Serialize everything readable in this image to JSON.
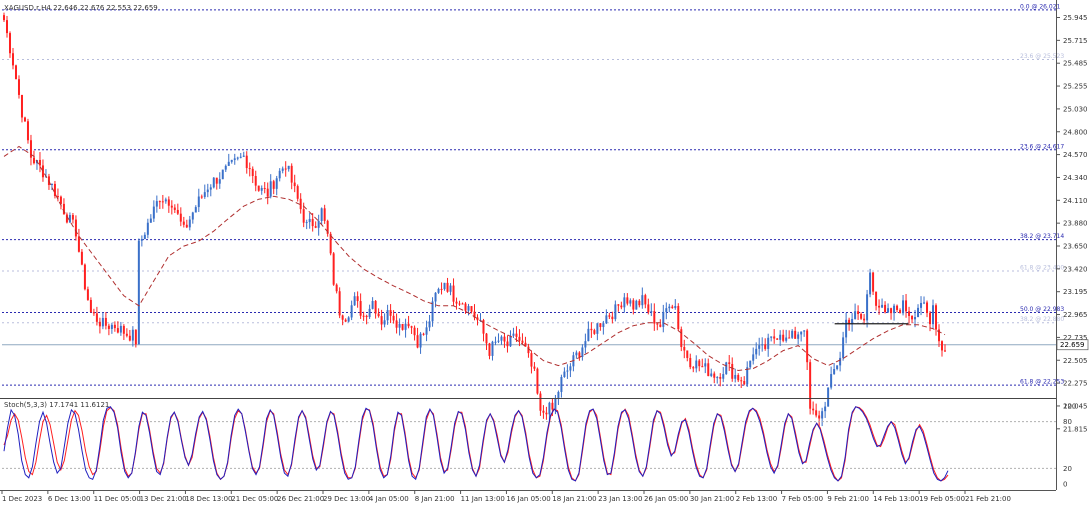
{
  "symbol_info": "XAGUSD.r,H4  22.646 22.676 22.553 22.659",
  "stoch_info": "Stoch(5,3,3) 17.1741 11.6121",
  "current_price": "22.659",
  "colors": {
    "background": "#ffffff",
    "bull": "#3a70c9",
    "bear": "#ff2020",
    "ma": "#b03030",
    "fib": "#2a2ab0",
    "fib_faint": "#b8bedc",
    "stoch_main": "#2020c0",
    "stoch_signal": "#ff2020",
    "level_line": "#222222",
    "price_line": "#8fa8c0",
    "text": "#333333"
  },
  "chart_data": {
    "type": "candlestick",
    "price_axis_labels": [
      "25.945",
      "25.715",
      "25.485",
      "25.255",
      "25.030",
      "24.800",
      "24.570",
      "24.340",
      "24.110",
      "23.880",
      "23.650",
      "23.420",
      "23.195",
      "22.965",
      "22.735",
      "22.505",
      "22.275",
      "22.045",
      "21.815"
    ],
    "time_axis_labels": [
      "1 Dec 2023",
      "6 Dec 13:00",
      "11 Dec 05:00",
      "13 Dec 21:00",
      "18 Dec 13:00",
      "21 Dec 05:00",
      "26 Dec 21:00",
      "29 Dec 13:00",
      "4 Jan 05:00",
      "8 Jan 21:00",
      "11 Jan 13:00",
      "16 Jan 05:00",
      "18 Jan 21:00",
      "23 Jan 13:00",
      "26 Jan 05:00",
      "30 Jan 21:00",
      "2 Feb 13:00",
      "7 Feb 05:00",
      "9 Feb 21:00",
      "14 Feb 13:00",
      "19 Feb 05:00",
      "21 Feb 21:00"
    ],
    "fib_levels": [
      {
        "label": "0.0 @ 26.021",
        "price": 26.021,
        "style": "strong"
      },
      {
        "label": "23.6 @ 25.523",
        "price": 25.523,
        "style": "faint"
      },
      {
        "label": "23.6 @ 24.617",
        "price": 24.617,
        "style": "strong"
      },
      {
        "label": "38.2 @ 23.714",
        "price": 23.714,
        "style": "strong"
      },
      {
        "label": "61.8 @ 23.400",
        "price": 23.4,
        "style": "faint"
      },
      {
        "label": "50.0 @ 22.983",
        "price": 22.983,
        "style": "strong"
      },
      {
        "label": "38.2 @ 22.880",
        "price": 22.88,
        "style": "faint"
      },
      {
        "label": "61.8 @ 22.253",
        "price": 22.253,
        "style": "strong"
      }
    ],
    "current_price": 22.659,
    "horizontal_level": {
      "price": 22.87,
      "x_from": 0.79,
      "x_to": 0.86
    },
    "path_points": [
      [
        0,
        25.92
      ],
      [
        3,
        25.5
      ],
      [
        6,
        25.0
      ],
      [
        9,
        24.55
      ],
      [
        13,
        24.4
      ],
      [
        17,
        24.2
      ],
      [
        21,
        23.95
      ],
      [
        24,
        23.8
      ],
      [
        26,
        23.4
      ],
      [
        29,
        22.98
      ],
      [
        33,
        22.86
      ],
      [
        37,
        22.85
      ],
      [
        41,
        22.77
      ],
      [
        43,
        22.75
      ],
      [
        44,
        22.7
      ],
      [
        45,
        23.65
      ],
      [
        47,
        23.8
      ],
      [
        52,
        24.15
      ],
      [
        56,
        24.1
      ],
      [
        60,
        23.8
      ],
      [
        64,
        24.05
      ],
      [
        68,
        24.25
      ],
      [
        73,
        24.38
      ],
      [
        77,
        24.48
      ],
      [
        80,
        24.55
      ],
      [
        82,
        24.45
      ],
      [
        85,
        24.22
      ],
      [
        88,
        24.18
      ],
      [
        91,
        24.35
      ],
      [
        94,
        24.48
      ],
      [
        97,
        24.2
      ],
      [
        101,
        23.85
      ],
      [
        104,
        23.9
      ],
      [
        106,
        24.0
      ],
      [
        108,
        23.75
      ],
      [
        110,
        23.3
      ],
      [
        112,
        23.0
      ],
      [
        114,
        22.95
      ],
      [
        117,
        23.1
      ],
      [
        120,
        22.95
      ],
      [
        123,
        23.1
      ],
      [
        126,
        22.9
      ],
      [
        129,
        23.0
      ],
      [
        132,
        22.85
      ],
      [
        135,
        22.9
      ],
      [
        138,
        22.7
      ],
      [
        141,
        22.8
      ],
      [
        144,
        23.15
      ],
      [
        147,
        23.3
      ],
      [
        150,
        23.15
      ],
      [
        153,
        23.1
      ],
      [
        156,
        23.0
      ],
      [
        159,
        22.85
      ],
      [
        162,
        22.6
      ],
      [
        165,
        22.7
      ],
      [
        168,
        22.65
      ],
      [
        171,
        22.75
      ],
      [
        174,
        22.6
      ],
      [
        177,
        22.35
      ],
      [
        179,
        21.95
      ],
      [
        181,
        22.02
      ],
      [
        183,
        22.0
      ],
      [
        186,
        22.3
      ],
      [
        189,
        22.45
      ],
      [
        192,
        22.6
      ],
      [
        195,
        22.75
      ],
      [
        198,
        22.85
      ],
      [
        201,
        22.95
      ],
      [
        204,
        23.0
      ],
      [
        207,
        23.15
      ],
      [
        210,
        23.05
      ],
      [
        213,
        23.1
      ],
      [
        216,
        22.95
      ],
      [
        219,
        22.85
      ],
      [
        222,
        23.1
      ],
      [
        224,
        23.05
      ],
      [
        226,
        22.65
      ],
      [
        229,
        22.5
      ],
      [
        232,
        22.45
      ],
      [
        235,
        22.4
      ],
      [
        238,
        22.35
      ],
      [
        241,
        22.45
      ],
      [
        244,
        22.35
      ],
      [
        247,
        22.3
      ],
      [
        250,
        22.6
      ],
      [
        253,
        22.6
      ],
      [
        256,
        22.7
      ],
      [
        259,
        22.8
      ],
      [
        261,
        22.7
      ],
      [
        264,
        22.75
      ],
      [
        267,
        22.85
      ],
      [
        269,
        22.0
      ],
      [
        271,
        21.92
      ],
      [
        273,
        21.98
      ],
      [
        275,
        22.2
      ],
      [
        277,
        22.4
      ],
      [
        279,
        22.55
      ],
      [
        281,
        22.9
      ],
      [
        284,
        22.95
      ],
      [
        287,
        22.9
      ],
      [
        289,
        23.4
      ],
      [
        291,
        23.1
      ],
      [
        294,
        22.95
      ],
      [
        297,
        23.0
      ],
      [
        300,
        23.05
      ],
      [
        303,
        22.95
      ],
      [
        306,
        23.1
      ],
      [
        309,
        22.85
      ],
      [
        310,
        23.05
      ],
      [
        312,
        22.7
      ],
      [
        314,
        22.6
      ]
    ],
    "ma_points": [
      [
        0,
        24.55
      ],
      [
        5,
        24.65
      ],
      [
        10,
        24.55
      ],
      [
        15,
        24.3
      ],
      [
        20,
        24.0
      ],
      [
        25,
        23.75
      ],
      [
        30,
        23.55
      ],
      [
        35,
        23.35
      ],
      [
        40,
        23.15
      ],
      [
        45,
        23.05
      ],
      [
        50,
        23.3
      ],
      [
        55,
        23.55
      ],
      [
        60,
        23.65
      ],
      [
        65,
        23.7
      ],
      [
        70,
        23.8
      ],
      [
        75,
        23.93
      ],
      [
        80,
        24.05
      ],
      [
        85,
        24.12
      ],
      [
        90,
        24.15
      ],
      [
        95,
        24.12
      ],
      [
        100,
        24.05
      ],
      [
        105,
        23.9
      ],
      [
        110,
        23.72
      ],
      [
        115,
        23.55
      ],
      [
        120,
        23.42
      ],
      [
        125,
        23.33
      ],
      [
        130,
        23.25
      ],
      [
        135,
        23.18
      ],
      [
        140,
        23.1
      ],
      [
        145,
        23.05
      ],
      [
        150,
        23.05
      ],
      [
        155,
        22.98
      ],
      [
        160,
        22.88
      ],
      [
        165,
        22.8
      ],
      [
        170,
        22.73
      ],
      [
        175,
        22.62
      ],
      [
        180,
        22.5
      ],
      [
        185,
        22.45
      ],
      [
        190,
        22.5
      ],
      [
        195,
        22.58
      ],
      [
        200,
        22.68
      ],
      [
        205,
        22.78
      ],
      [
        210,
        22.85
      ],
      [
        215,
        22.88
      ],
      [
        220,
        22.88
      ],
      [
        225,
        22.8
      ],
      [
        230,
        22.68
      ],
      [
        235,
        22.55
      ],
      [
        240,
        22.46
      ],
      [
        245,
        22.4
      ],
      [
        250,
        22.42
      ],
      [
        255,
        22.5
      ],
      [
        260,
        22.6
      ],
      [
        265,
        22.65
      ],
      [
        270,
        22.52
      ],
      [
        275,
        22.45
      ],
      [
        280,
        22.52
      ],
      [
        285,
        22.62
      ],
      [
        290,
        22.72
      ],
      [
        295,
        22.8
      ],
      [
        300,
        22.86
      ],
      [
        305,
        22.86
      ],
      [
        310,
        22.82
      ],
      [
        314,
        22.76
      ]
    ],
    "stochastic": {
      "levels": [
        80,
        20
      ],
      "scale_labels": [
        "100",
        "80",
        "20",
        "0"
      ],
      "main": [
        42,
        72,
        95,
        88,
        64,
        30,
        12,
        8,
        22,
        52,
        80,
        92,
        78,
        52,
        28,
        14,
        20,
        48,
        78,
        95,
        90,
        70,
        42,
        18,
        8,
        6,
        18,
        48,
        82,
        97,
        99,
        92,
        72,
        40,
        16,
        8,
        14,
        40,
        74,
        92,
        88,
        66,
        38,
        16,
        12,
        28,
        60,
        86,
        92,
        80,
        56,
        34,
        24,
        38,
        64,
        86,
        93,
        82,
        58,
        30,
        12,
        6,
        10,
        28,
        62,
        88,
        96,
        90,
        68,
        42,
        20,
        12,
        22,
        52,
        84,
        95,
        88,
        62,
        34,
        14,
        10,
        26,
        58,
        86,
        94,
        84,
        58,
        32,
        18,
        24,
        52,
        80,
        93,
        88,
        64,
        36,
        14,
        6,
        8,
        22,
        56,
        86,
        97,
        94,
        74,
        44,
        18,
        8,
        12,
        36,
        72,
        92,
        88,
        62,
        30,
        10,
        6,
        20,
        54,
        86,
        96,
        88,
        60,
        30,
        14,
        20,
        48,
        78,
        93,
        90,
        70,
        40,
        18,
        10,
        24,
        56,
        82,
        90,
        80,
        58,
        36,
        28,
        44,
        70,
        88,
        94,
        86,
        62,
        34,
        14,
        8,
        12,
        34,
        66,
        88,
        96,
        92,
        72,
        44,
        18,
        6,
        4,
        14,
        46,
        78,
        94,
        96,
        84,
        58,
        30,
        12,
        14,
        40,
        74,
        92,
        95,
        84,
        60,
        34,
        16,
        10,
        22,
        52,
        82,
        94,
        90,
        72,
        50,
        36,
        42,
        64,
        80,
        82,
        66,
        42,
        22,
        10,
        8,
        20,
        50,
        78,
        90,
        86,
        68,
        44,
        24,
        16,
        26,
        54,
        80,
        94,
        97,
        92,
        80,
        62,
        40,
        22,
        14,
        24,
        50,
        78,
        90,
        84,
        62,
        40,
        26,
        30,
        52,
        70,
        78,
        70,
        52,
        34,
        18,
        8,
        4,
        10,
        34,
        70,
        92,
        99,
        97,
        92,
        84,
        72,
        58,
        48,
        50,
        62,
        74,
        80,
        72,
        56,
        38,
        26,
        34,
        54,
        70,
        74,
        64,
        48,
        30,
        14,
        6,
        4,
        8,
        17
      ],
      "signal": [
        50,
        62,
        82,
        90,
        82,
        60,
        34,
        16,
        12,
        28,
        56,
        80,
        88,
        76,
        52,
        28,
        18,
        30,
        56,
        82,
        94,
        88,
        68,
        42,
        22,
        12,
        16,
        42,
        74,
        94,
        98,
        94,
        76,
        46,
        20,
        10,
        14,
        38,
        70,
        90,
        90,
        70,
        42,
        20,
        14,
        26,
        58,
        84,
        92,
        82,
        58,
        36,
        24,
        34,
        60,
        84,
        92,
        84,
        62,
        34,
        14,
        6,
        10,
        26,
        58,
        84,
        94,
        90,
        70,
        44,
        22,
        14,
        20,
        48,
        80,
        94,
        90,
        66,
        38,
        18,
        12,
        24,
        54,
        84,
        94,
        86,
        62,
        36,
        20,
        22,
        48,
        78,
        92,
        90,
        68,
        40,
        18,
        8,
        8,
        20,
        52,
        82,
        96,
        95,
        78,
        48,
        22,
        10,
        12,
        32,
        68,
        90,
        90,
        66,
        34,
        14,
        8,
        18,
        50,
        82,
        95,
        90,
        64,
        34,
        16,
        18,
        44,
        74,
        92,
        92,
        74,
        44,
        20,
        10,
        20,
        52,
        80,
        90,
        82,
        62,
        38,
        28,
        40,
        66,
        86,
        94,
        88,
        66,
        38,
        18,
        8,
        10,
        30,
        62,
        86,
        96,
        94,
        76,
        48,
        22,
        8,
        4,
        12,
        42,
        74,
        92,
        96,
        88,
        62,
        34,
        14,
        12,
        36,
        70,
        90,
        96,
        88,
        64,
        38,
        18,
        10,
        20,
        48,
        78,
        94,
        92,
        76,
        54,
        38,
        40,
        60,
        78,
        84,
        70,
        46,
        26,
        12,
        8,
        18,
        46,
        74,
        90,
        88,
        72,
        48,
        26,
        16,
        24,
        50,
        76,
        92,
        97,
        94,
        84,
        66,
        44,
        26,
        16,
        22,
        46,
        74,
        90,
        86,
        66,
        44,
        28,
        28,
        48,
        68,
        78,
        72,
        56,
        38,
        22,
        10,
        4,
        8,
        30,
        66,
        90,
        99,
        98,
        94,
        86,
        76,
        62,
        50,
        48,
        58,
        72,
        80,
        76,
        60,
        42,
        28,
        32,
        50,
        68,
        76,
        68,
        52,
        34,
        18,
        8,
        4,
        6,
        11.6
      ]
    }
  }
}
